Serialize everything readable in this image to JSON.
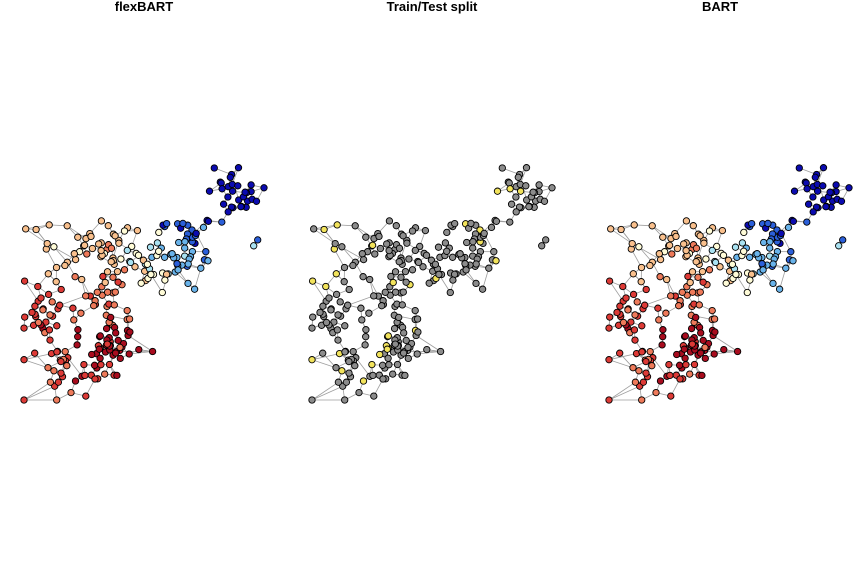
{
  "figure": {
    "panels": [
      {
        "id": "flexbart",
        "title": "flexBART",
        "color_mode": "predicted"
      },
      {
        "id": "split",
        "title": "Train/Test split",
        "color_mode": "split"
      },
      {
        "id": "bart",
        "title": "BART",
        "color_mode": "predicted"
      }
    ]
  },
  "colors": {
    "edge": "#9e9e9e",
    "node_outline": "#000000",
    "train_node": "#8c8c8c",
    "test_node": "#f2e35c",
    "palette": [
      "#0b0bb0",
      "#2b5fd9",
      "#69b3ea",
      "#a9e2f2",
      "#fffcd8",
      "#f9c08d",
      "#ee7a5a",
      "#dd3a36",
      "#a80c1e"
    ]
  }
}
